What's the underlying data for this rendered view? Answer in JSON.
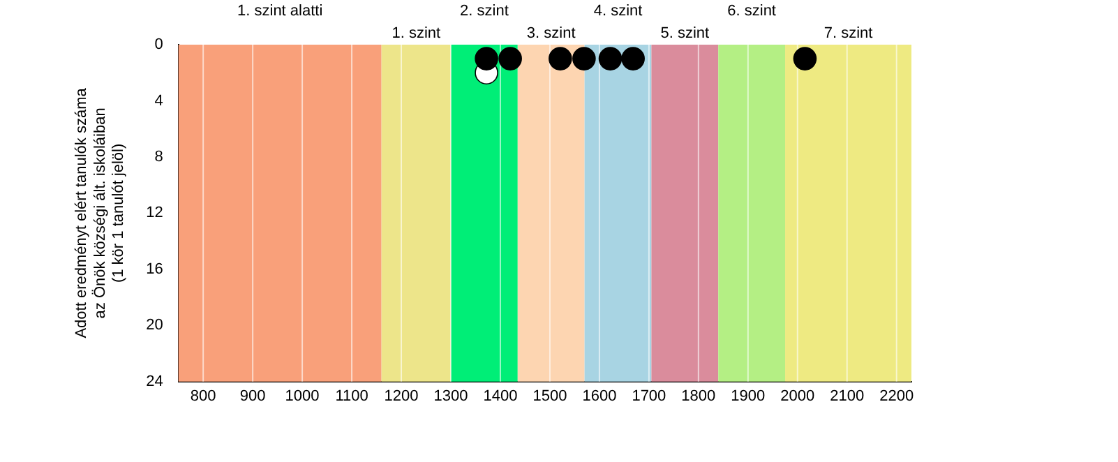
{
  "chart_data": {
    "type": "scatter",
    "ylabel": "Adott eredményt elért tanulók száma\naz Önök községi ált. iskoláiban\n(1 kör 1 tanulót jelöl)",
    "series": [
      {
        "color": "#000000",
        "x": [
          1372,
          1420,
          1521,
          1569,
          1622,
          1668,
          2015
        ],
        "values": [
          1,
          1,
          1,
          1,
          1,
          1,
          1
        ]
      },
      {
        "color": "#ffffff",
        "x": [
          1372
        ],
        "values": [
          2
        ]
      }
    ],
    "xlim": [
      750,
      2230
    ],
    "xticks": [
      800,
      900,
      1000,
      1100,
      1200,
      1300,
      1400,
      1500,
      1600,
      1700,
      1800,
      1900,
      2000,
      2100,
      2200
    ],
    "ylim": [
      24,
      0
    ],
    "yticks": [
      0,
      4,
      8,
      12,
      16,
      20,
      24
    ],
    "bands": [
      {
        "axis": "x",
        "from": 750,
        "to": 1160,
        "label": "1. szint alatti",
        "color": "#f9a07a"
      },
      {
        "axis": "x",
        "from": 1160,
        "to": 1300,
        "label": "1. szint",
        "color": "#ede58a"
      },
      {
        "axis": "x",
        "from": 1300,
        "to": 1435,
        "label": "2. szint",
        "color": "#00ee77"
      },
      {
        "axis": "x",
        "from": 1435,
        "to": 1570,
        "label": "3. szint",
        "color": "#fdd5b1"
      },
      {
        "axis": "x",
        "from": 1570,
        "to": 1705,
        "label": "4. szint",
        "color": "#a8d4e3"
      },
      {
        "axis": "x",
        "from": 1705,
        "to": 1840,
        "label": "5. szint",
        "color": "#da8c9c"
      },
      {
        "axis": "x",
        "from": 1840,
        "to": 1975,
        "label": "6. szint",
        "color": "#b4ef84"
      },
      {
        "axis": "x",
        "from": 1975,
        "to": 2230,
        "label": "7. szint",
        "color": "#eeea82"
      }
    ],
    "grid": "x",
    "marker": "circle",
    "legend": false
  }
}
